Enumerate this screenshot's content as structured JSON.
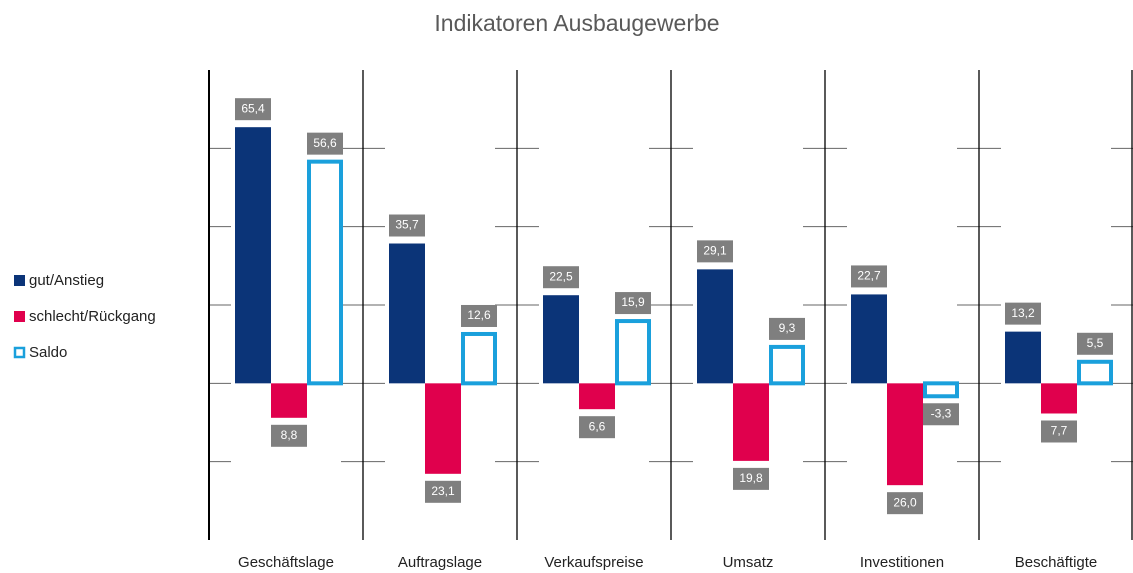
{
  "chart_data": {
    "type": "bar",
    "title": "Indikatoren Ausbaugewerbe",
    "categories": [
      "Geschäftslage",
      "Auftragslage",
      "Verkaufspreise",
      "Umsatz",
      "Investitionen",
      "Beschäftigte"
    ],
    "series": [
      {
        "name": "gut/Anstieg",
        "color": "#0b3478",
        "values": [
          65.4,
          35.7,
          22.5,
          29.1,
          22.7,
          13.2
        ],
        "value_labels": [
          "65,4",
          "35,7",
          "22,5",
          "29,1",
          "22,7",
          "13,2"
        ]
      },
      {
        "name": "schlecht/Rückgang",
        "color": "#e0004d",
        "values": [
          -8.8,
          -23.1,
          -6.6,
          -19.8,
          -26.0,
          -7.7
        ],
        "value_labels": [
          "8,8",
          "23,1",
          "6,6",
          "19,8",
          "26,0",
          "7,7"
        ]
      },
      {
        "name": "Saldo",
        "color": "#1aa0dc",
        "outline": true,
        "values": [
          56.6,
          12.6,
          15.9,
          9.3,
          -3.3,
          5.5
        ],
        "value_labels": [
          "56,6",
          "12,6",
          "15,9",
          "9,3",
          "-3,3",
          "5,5"
        ]
      }
    ],
    "ylim": [
      -40,
      80
    ],
    "yticks": [
      -40,
      -20,
      0,
      20,
      40,
      60,
      80
    ],
    "grid": true,
    "legend": "left"
  }
}
